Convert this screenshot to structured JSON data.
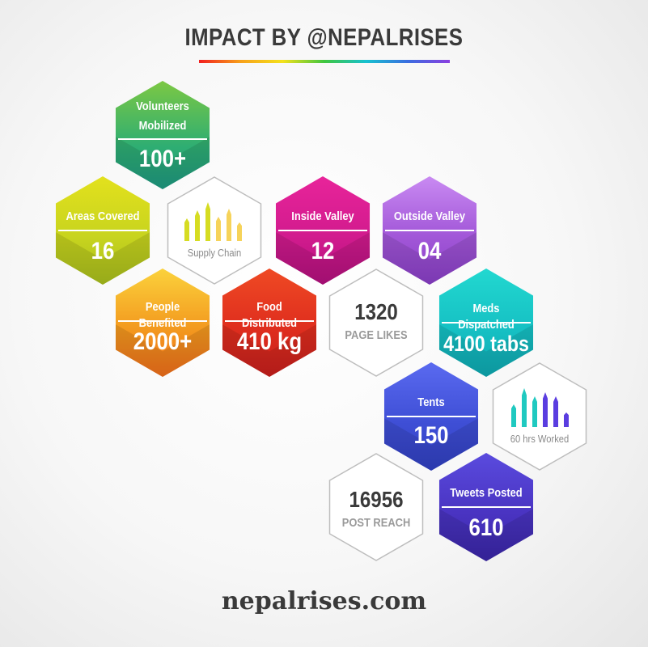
{
  "header": {
    "title": "IMPACT BY @NEPALRISES"
  },
  "stats": {
    "volunteers": {
      "label_line1": "Volunteers",
      "label_line2": "Mobilized",
      "value": "100+"
    },
    "areas": {
      "label": "Areas Covered",
      "value": "16"
    },
    "inside_valley": {
      "label": "Inside Valley",
      "value": "12"
    },
    "outside_valley": {
      "label": "Outside Valley",
      "value": "04"
    },
    "people": {
      "label": "People Benefited",
      "value": "2000+"
    },
    "food": {
      "label": "Food Distributed",
      "value": "410 kg"
    },
    "meds": {
      "label": "Meds Dispatched",
      "value": "4100 tabs"
    },
    "tents": {
      "label": "Tents",
      "value": "150"
    },
    "tweets": {
      "label": "Tweets Posted",
      "value": "610"
    }
  },
  "supply_chain": {
    "label": "Supply Chain",
    "bar_levels": [
      0.55,
      0.75,
      0.95,
      0.6,
      0.8,
      0.45
    ],
    "colors": [
      "#d6dc22",
      "#f6d35a"
    ]
  },
  "page_likes": {
    "value": "1320",
    "label": "PAGE LIKES"
  },
  "hours": {
    "label": "60 hrs Worked",
    "bar_levels": [
      0.55,
      0.95,
      0.75,
      0.85,
      0.75,
      0.35
    ],
    "colors": [
      "#1fc9c0",
      "#5a3de0"
    ]
  },
  "post_reach": {
    "value": "16956",
    "label": "POST REACH"
  },
  "footer": {
    "url": "nepalrises.com"
  },
  "colors": {
    "volunteers": "#2fae72",
    "areas": "#c8d41e",
    "inside_valley": "#d21b8e",
    "outside_valley": "#a257d8",
    "people": "#f39a1f",
    "food": "#df2e1e",
    "meds": "#16c1c4",
    "tents": "#3f4fd6",
    "tweets": "#4a34c2"
  }
}
